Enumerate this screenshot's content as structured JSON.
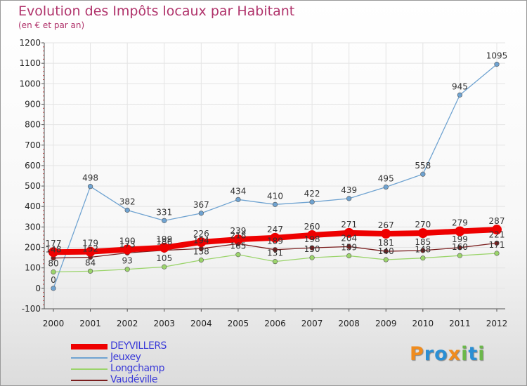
{
  "title": "Evolution des Impôts locaux par Habitant",
  "subtitle": "(en € et par an)",
  "logo": {
    "text": "Proxiti",
    "colors": [
      "#f08c1e",
      "#2a8fd4",
      "#2a8fd4",
      "#f08c1e",
      "#6bb84a",
      "#2a8fd4",
      "#6bb84a"
    ]
  },
  "chart_data": {
    "type": "line",
    "title": "Evolution des Impôts locaux par Habitant",
    "ylabel": "(en € et par an)",
    "xlabel": "",
    "ylim": [
      -100,
      1200
    ],
    "yticks": [
      -100,
      0,
      100,
      200,
      300,
      400,
      500,
      600,
      700,
      800,
      900,
      1000,
      1100,
      1200
    ],
    "categories": [
      "2000",
      "2001",
      "2002",
      "2003",
      "2004",
      "2005",
      "2006",
      "2007",
      "2008",
      "2009",
      "2010",
      "2011",
      "2012"
    ],
    "legend_position": "bottom-left",
    "series": [
      {
        "name": "DEYVILLERS",
        "color": "#ee0000",
        "values": [
          177,
          179,
          190,
          199,
          226,
          239,
          247,
          260,
          271,
          267,
          270,
          279,
          287
        ]
      },
      {
        "name": "Jeuxey",
        "color": "#6fa3d1",
        "values": [
          0,
          498,
          382,
          331,
          367,
          434,
          410,
          422,
          439,
          495,
          558,
          945,
          1095
        ]
      },
      {
        "name": "Longchamp",
        "color": "#9bd46b",
        "values": [
          80,
          84,
          93,
          105,
          138,
          165,
          131,
          150,
          159,
          140,
          148,
          160,
          171
        ]
      },
      {
        "name": "Vaudéville",
        "color": "#7a1e1e",
        "values": [
          148,
          152,
          173,
          186,
          194,
          218,
          189,
          198,
          204,
          181,
          185,
          199,
          221
        ]
      }
    ]
  }
}
